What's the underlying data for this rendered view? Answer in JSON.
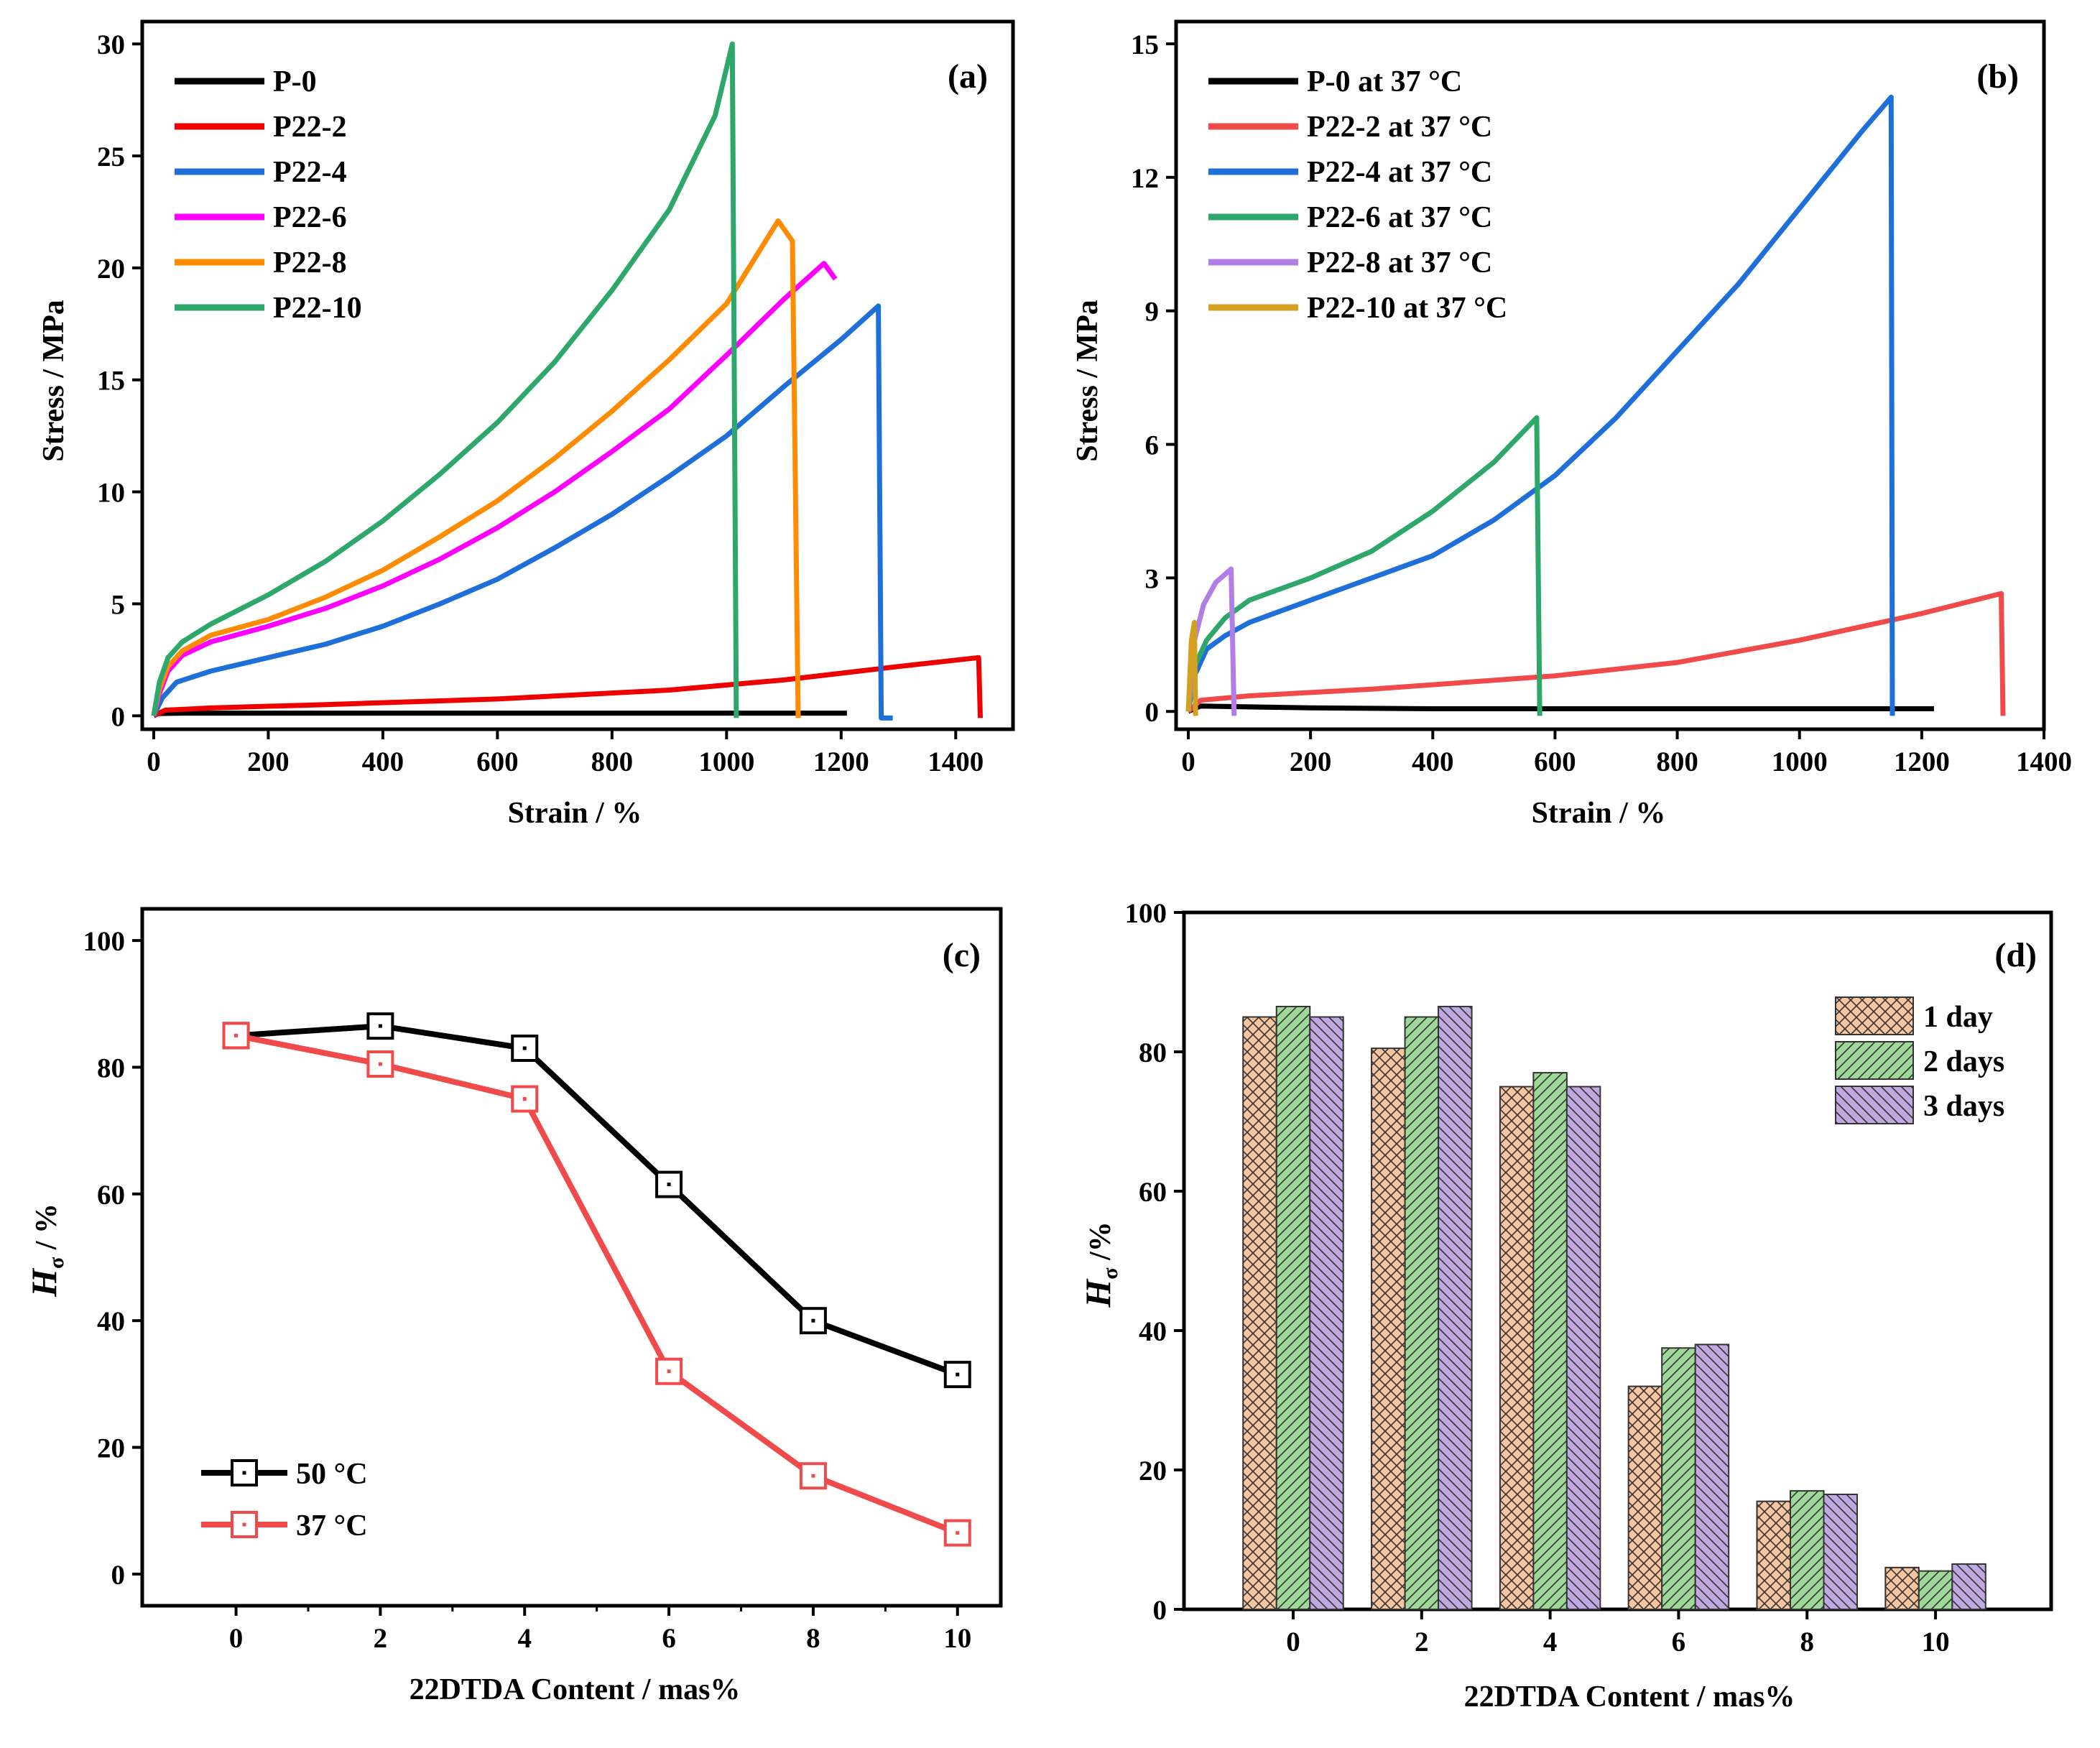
{
  "chart_data": [
    {
      "id": "a",
      "type": "line",
      "panel_label": "(a)",
      "xlabel": "Strain / %",
      "ylabel": "Stress / MPa",
      "xlim": [
        -20,
        1500
      ],
      "ylim": [
        -0.6,
        31
      ],
      "xticks": [
        0,
        200,
        400,
        600,
        800,
        1000,
        1200,
        1400
      ],
      "yticks": [
        0,
        5,
        10,
        15,
        20,
        25,
        30
      ],
      "legend_position": "top-left",
      "series": [
        {
          "name": "P-0",
          "color": "#000000",
          "points": [
            [
              0,
              0
            ],
            [
              5,
              0.1
            ],
            [
              50,
              0.12
            ],
            [
              600,
              0.12
            ],
            [
              1210,
              0.12
            ]
          ]
        },
        {
          "name": "P22-2",
          "color": "#ee0000",
          "points": [
            [
              0,
              0
            ],
            [
              20,
              0.25
            ],
            [
              100,
              0.35
            ],
            [
              300,
              0.5
            ],
            [
              600,
              0.75
            ],
            [
              900,
              1.15
            ],
            [
              1100,
              1.6
            ],
            [
              1300,
              2.2
            ],
            [
              1440,
              2.6
            ],
            [
              1443,
              -0.1
            ]
          ]
        },
        {
          "name": "P22-4",
          "color": "#1e6fd9",
          "points": [
            [
              0,
              0
            ],
            [
              15,
              0.8
            ],
            [
              40,
              1.5
            ],
            [
              100,
              2.0
            ],
            [
              200,
              2.6
            ],
            [
              300,
              3.2
            ],
            [
              400,
              4.0
            ],
            [
              500,
              5.0
            ],
            [
              600,
              6.1
            ],
            [
              700,
              7.5
            ],
            [
              800,
              9.0
            ],
            [
              900,
              10.7
            ],
            [
              1000,
              12.5
            ],
            [
              1100,
              14.7
            ],
            [
              1200,
              16.8
            ],
            [
              1265,
              18.3
            ],
            [
              1270,
              -0.1
            ],
            [
              1290,
              -0.1
            ]
          ]
        },
        {
          "name": "P22-6",
          "color": "#ff00ff",
          "points": [
            [
              0,
              0
            ],
            [
              10,
              1.0
            ],
            [
              25,
              2.0
            ],
            [
              50,
              2.7
            ],
            [
              100,
              3.3
            ],
            [
              200,
              4.0
            ],
            [
              300,
              4.8
            ],
            [
              400,
              5.8
            ],
            [
              500,
              7.0
            ],
            [
              600,
              8.4
            ],
            [
              700,
              10.0
            ],
            [
              800,
              11.8
            ],
            [
              900,
              13.7
            ],
            [
              1000,
              16.1
            ],
            [
              1100,
              18.6
            ],
            [
              1170,
              20.2
            ],
            [
              1190,
              19.5
            ]
          ]
        },
        {
          "name": "P22-8",
          "color": "#ff8c00",
          "points": [
            [
              0,
              0
            ],
            [
              10,
              1.2
            ],
            [
              25,
              2.2
            ],
            [
              50,
              2.9
            ],
            [
              100,
              3.6
            ],
            [
              200,
              4.3
            ],
            [
              300,
              5.3
            ],
            [
              400,
              6.5
            ],
            [
              500,
              8.0
            ],
            [
              600,
              9.6
            ],
            [
              700,
              11.5
            ],
            [
              800,
              13.6
            ],
            [
              900,
              15.9
            ],
            [
              1000,
              18.4
            ],
            [
              1090,
              22.1
            ],
            [
              1115,
              21.2
            ],
            [
              1125,
              -0.1
            ]
          ]
        },
        {
          "name": "P22-10",
          "color": "#2ea86a",
          "points": [
            [
              0,
              0
            ],
            [
              10,
              1.5
            ],
            [
              25,
              2.6
            ],
            [
              50,
              3.3
            ],
            [
              100,
              4.1
            ],
            [
              200,
              5.4
            ],
            [
              300,
              6.9
            ],
            [
              400,
              8.7
            ],
            [
              500,
              10.8
            ],
            [
              600,
              13.1
            ],
            [
              700,
              15.8
            ],
            [
              800,
              19.0
            ],
            [
              900,
              22.6
            ],
            [
              980,
              26.8
            ],
            [
              1010,
              30.0
            ],
            [
              1017,
              -0.1
            ]
          ]
        }
      ]
    },
    {
      "id": "b",
      "type": "line",
      "panel_label": "(b)",
      "xlabel": "Strain / %",
      "ylabel": "Stress / MPa",
      "xlim": [
        -20,
        1400
      ],
      "ylim": [
        -0.4,
        15.5
      ],
      "xticks": [
        0,
        200,
        400,
        600,
        800,
        1000,
        1200,
        1400
      ],
      "yticks": [
        0,
        3,
        6,
        9,
        12,
        15
      ],
      "legend_position": "top-left",
      "series": [
        {
          "name": "P-0 at 37 °C",
          "color": "#000000",
          "points": [
            [
              0,
              0
            ],
            [
              20,
              0.12
            ],
            [
              200,
              0.08
            ],
            [
              400,
              0.06
            ],
            [
              800,
              0.06
            ],
            [
              1220,
              0.06
            ]
          ]
        },
        {
          "name": "P22-2 at 37 °C",
          "color": "#f04a4a",
          "points": [
            [
              0,
              0
            ],
            [
              20,
              0.25
            ],
            [
              100,
              0.35
            ],
            [
              300,
              0.5
            ],
            [
              600,
              0.8
            ],
            [
              800,
              1.1
            ],
            [
              1000,
              1.6
            ],
            [
              1200,
              2.2
            ],
            [
              1330,
              2.65
            ],
            [
              1333,
              -0.1
            ]
          ]
        },
        {
          "name": "P22-4 at 37 °C",
          "color": "#1e6fd9",
          "points": [
            [
              0,
              0
            ],
            [
              10,
              0.8
            ],
            [
              30,
              1.4
            ],
            [
              60,
              1.7
            ],
            [
              100,
              2.0
            ],
            [
              200,
              2.5
            ],
            [
              300,
              3.0
            ],
            [
              400,
              3.5
            ],
            [
              500,
              4.3
            ],
            [
              600,
              5.3
            ],
            [
              700,
              6.6
            ],
            [
              800,
              8.1
            ],
            [
              900,
              9.6
            ],
            [
              1000,
              11.3
            ],
            [
              1100,
              13.0
            ],
            [
              1150,
              13.8
            ],
            [
              1152,
              -0.1
            ]
          ]
        },
        {
          "name": "P22-6 at 37 °C",
          "color": "#2ea86a",
          "points": [
            [
              0,
              0
            ],
            [
              10,
              1.0
            ],
            [
              30,
              1.6
            ],
            [
              60,
              2.1
            ],
            [
              100,
              2.5
            ],
            [
              200,
              3.0
            ],
            [
              300,
              3.6
            ],
            [
              400,
              4.5
            ],
            [
              500,
              5.6
            ],
            [
              570,
              6.6
            ],
            [
              575,
              -0.1
            ]
          ]
        },
        {
          "name": "P22-8 at 37 °C",
          "color": "#b07ee6",
          "points": [
            [
              0,
              0
            ],
            [
              10,
              1.6
            ],
            [
              25,
              2.4
            ],
            [
              45,
              2.9
            ],
            [
              70,
              3.2
            ],
            [
              75,
              -0.1
            ]
          ]
        },
        {
          "name": "P22-10 at 37 °C",
          "color": "#d4a020",
          "points": [
            [
              0,
              0
            ],
            [
              5,
              1.6
            ],
            [
              10,
              2.0
            ],
            [
              12,
              -0.1
            ]
          ]
        }
      ]
    },
    {
      "id": "c",
      "type": "line",
      "panel_label": "(c)",
      "xlabel": "22DTDA Content / mas%",
      "ylabel_main": "H",
      "ylabel_sub": "σ",
      "ylabel_rest": " / %",
      "xlim": [
        -1.3,
        10.6
      ],
      "ylim": [
        -5,
        105
      ],
      "xticks": [
        0,
        2,
        4,
        6,
        8,
        10
      ],
      "yticks": [
        0,
        20,
        40,
        60,
        80,
        100
      ],
      "legend_position": "bottom-left",
      "categories": [
        0,
        2,
        4,
        6,
        8,
        10
      ],
      "series": [
        {
          "name": "50 °C",
          "color": "#000000",
          "values": [
            85,
            86.5,
            83,
            61.5,
            40,
            31.5
          ]
        },
        {
          "name": "37 °C",
          "color": "#f04a4a",
          "values": [
            85,
            80.5,
            75,
            32,
            15.5,
            6.5
          ]
        }
      ]
    },
    {
      "id": "d",
      "type": "bar",
      "panel_label": "(d)",
      "xlabel": "22DTDA Content / mas%",
      "ylabel_main": "H",
      "ylabel_sub": "σ",
      "ylabel_rest": " /%",
      "ylim": [
        0,
        100
      ],
      "yticks": [
        0,
        20,
        40,
        60,
        80,
        100
      ],
      "legend_position": "top-right",
      "categories": [
        "0",
        "2",
        "4",
        "6",
        "8",
        "10"
      ],
      "series": [
        {
          "name": "1 day",
          "color": "#f7c59f",
          "pattern": "crosshatch",
          "values": [
            85,
            80.5,
            75,
            32,
            15.5,
            6
          ]
        },
        {
          "name": "2 days",
          "color": "#9ed99a",
          "pattern": "forward",
          "values": [
            86.5,
            85,
            77,
            37.5,
            17,
            5.5
          ]
        },
        {
          "name": "3 days",
          "color": "#c0a8e0",
          "pattern": "backward",
          "values": [
            85,
            86.5,
            75,
            38,
            16.5,
            6.5
          ]
        }
      ]
    }
  ]
}
